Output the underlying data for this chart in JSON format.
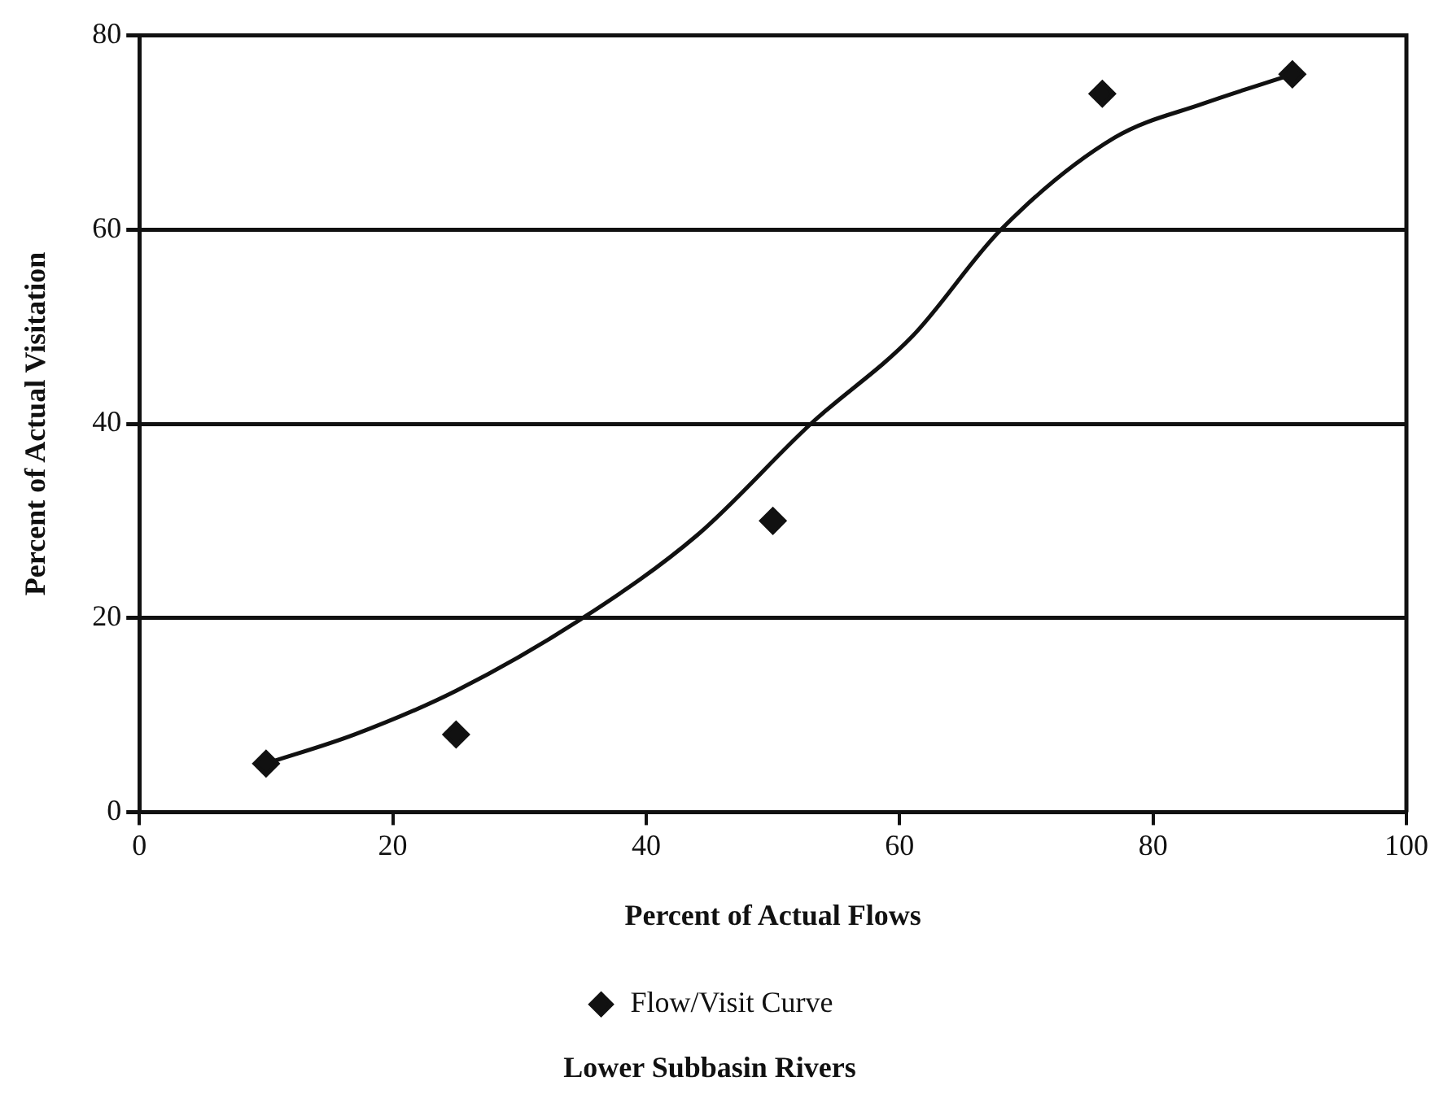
{
  "chart_data": {
    "type": "scatter",
    "title": "Lower Subbasin Rivers",
    "xlabel": "Percent of Actual Flows",
    "ylabel": "Percent of Actual Visitation",
    "x": [
      10,
      25,
      50,
      76,
      91
    ],
    "series": [
      {
        "name": "Flow/Visit Curve",
        "type": "scatter",
        "color": "#111111",
        "marker": "diamond",
        "values": [
          5,
          8,
          30,
          74,
          76
        ]
      },
      {
        "type": "line",
        "color": "#111111",
        "marker": "none",
        "x": [
          10,
          17,
          25,
          35,
          44,
          53,
          61,
          68,
          77,
          84,
          91
        ],
        "values": [
          5,
          8,
          12.5,
          20,
          28.5,
          40,
          49,
          60,
          69.5,
          73,
          76
        ]
      }
    ],
    "xlim": [
      0,
      100
    ],
    "xticks": [
      0,
      20,
      40,
      60,
      80,
      100
    ],
    "ylim": [
      0,
      80
    ],
    "yticks": [
      0,
      20,
      40,
      60,
      80
    ],
    "grid": "y",
    "legend": "bottom"
  }
}
